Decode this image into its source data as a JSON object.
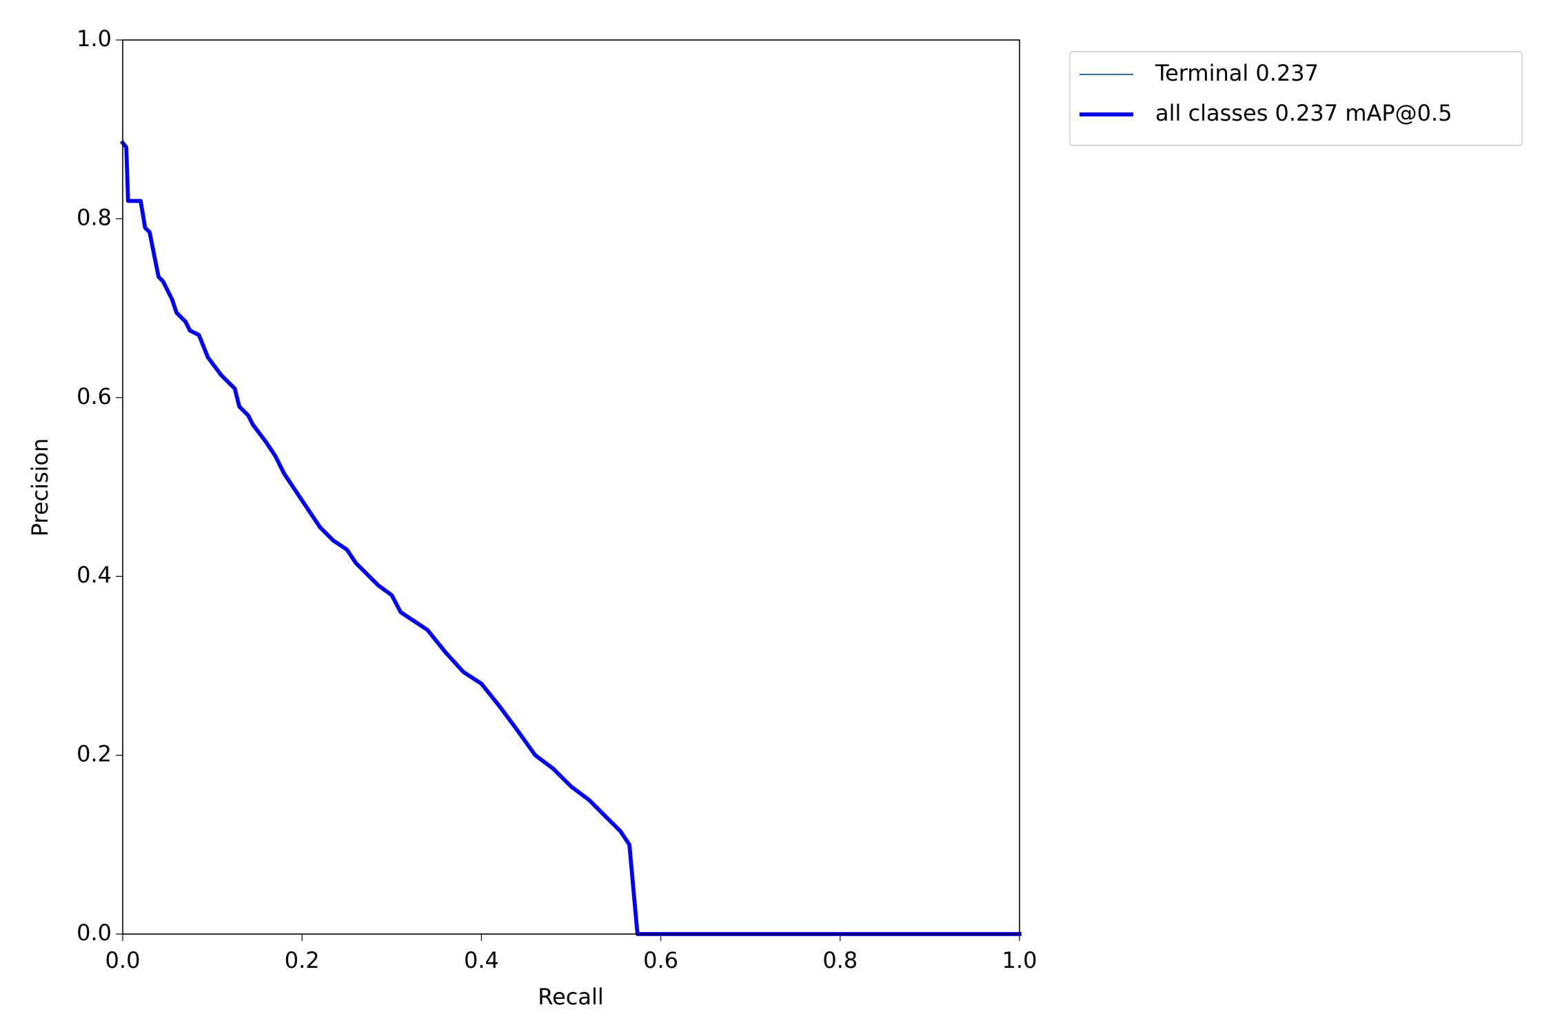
{
  "chart_data": {
    "type": "line",
    "xlabel": "Recall",
    "ylabel": "Precision",
    "x": [
      0,
      0.004,
      0.006,
      0.02,
      0.025,
      0.03,
      0.035,
      0.04,
      0.045,
      0.055,
      0.06,
      0.07,
      0.075,
      0.085,
      0.095,
      0.11,
      0.125,
      0.13,
      0.14,
      0.145,
      0.16,
      0.17,
      0.18,
      0.19,
      0.2,
      0.21,
      0.22,
      0.235,
      0.25,
      0.26,
      0.275,
      0.285,
      0.3,
      0.31,
      0.325,
      0.34,
      0.36,
      0.38,
      0.4,
      0.42,
      0.44,
      0.46,
      0.48,
      0.5,
      0.52,
      0.54,
      0.555,
      0.565,
      0.574,
      1.0
    ],
    "series": [
      {
        "name": "Terminal 0.237",
        "color": "#1f77b4",
        "linewidth": 1,
        "values": [
          0.885,
          0.88,
          0.82,
          0.82,
          0.79,
          0.785,
          0.76,
          0.735,
          0.73,
          0.71,
          0.695,
          0.685,
          0.675,
          0.67,
          0.645,
          0.625,
          0.61,
          0.59,
          0.58,
          0.57,
          0.55,
          0.535,
          0.515,
          0.5,
          0.485,
          0.47,
          0.455,
          0.44,
          0.43,
          0.415,
          0.4,
          0.39,
          0.379,
          0.36,
          0.35,
          0.34,
          0.315,
          0.293,
          0.28,
          0.255,
          0.228,
          0.2,
          0.185,
          0.165,
          0.15,
          0.13,
          0.115,
          0.1,
          0.0,
          0.0
        ]
      },
      {
        "name": "all classes 0.237 mAP@0.5",
        "color": "#0000ff",
        "linewidth": 3,
        "values": [
          0.885,
          0.88,
          0.82,
          0.82,
          0.79,
          0.785,
          0.76,
          0.735,
          0.73,
          0.71,
          0.695,
          0.685,
          0.675,
          0.67,
          0.645,
          0.625,
          0.61,
          0.59,
          0.58,
          0.57,
          0.55,
          0.535,
          0.515,
          0.5,
          0.485,
          0.47,
          0.455,
          0.44,
          0.43,
          0.415,
          0.4,
          0.39,
          0.379,
          0.36,
          0.35,
          0.34,
          0.315,
          0.293,
          0.28,
          0.255,
          0.228,
          0.2,
          0.185,
          0.165,
          0.15,
          0.13,
          0.115,
          0.1,
          0.0,
          0.0
        ]
      }
    ],
    "xlim": [
      0,
      1
    ],
    "ylim": [
      0,
      1
    ],
    "xticks": [
      {
        "value": 0,
        "label": "0.0"
      },
      0.2,
      0.4,
      0.6,
      0.8,
      {
        "value": 1,
        "label": "1.0"
      }
    ],
    "yticks": [
      {
        "value": 0,
        "label": "0.0"
      },
      0.2,
      0.4,
      0.6,
      0.8,
      {
        "value": 1,
        "label": "1.0"
      }
    ],
    "grid": false,
    "legend": "outside upper right"
  }
}
